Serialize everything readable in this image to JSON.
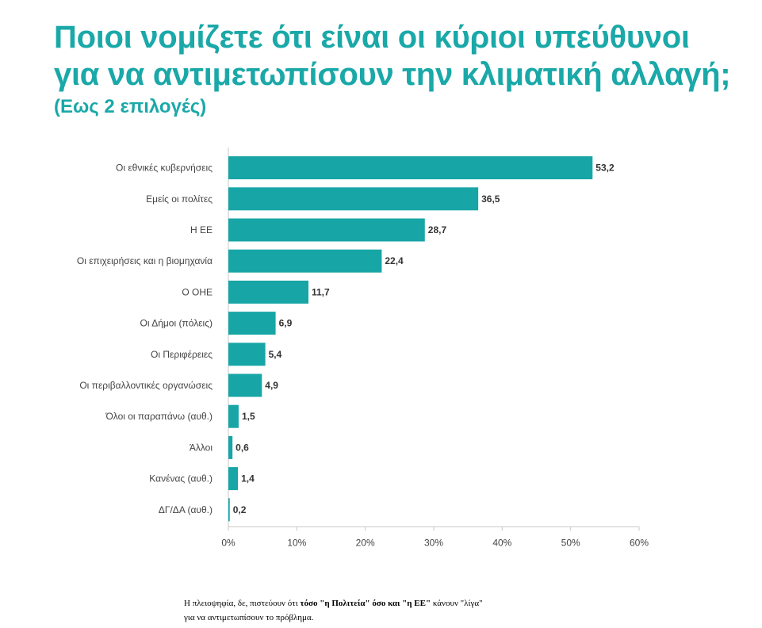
{
  "title_line1": "Ποιοι νομίζετε ότι είναι οι κύριοι υπεύθυνοι",
  "title_line2": "για να αντιμετωπίσουν την κλιματική αλλαγή;",
  "subtitle": "(Εως 2 επιλογές)",
  "colors": {
    "accent": "#1aa8a8",
    "bar": "#17a5a6",
    "axis": "#c8c8c8",
    "text": "#444444"
  },
  "chart_data": {
    "type": "bar",
    "orientation": "horizontal",
    "categories": [
      "Οι εθνικές κυβερνήσεις",
      "Εμείς οι πολίτες",
      "Η ΕΕ",
      "Οι επιχειρήσεις και η βιομηχανία",
      "Ο ΟΗΕ",
      "Οι Δήμοι (πόλεις)",
      "Οι Περιφέρειες",
      "Οι περιβαλλοντικές οργανώσεις",
      "Όλοι οι παραπάνω (αυθ.)",
      "Άλλοι",
      "Κανένας (αυθ.)",
      "ΔΓ/ΔΑ (αυθ.)"
    ],
    "values": [
      53.2,
      36.5,
      28.7,
      22.4,
      11.7,
      6.9,
      5.4,
      4.9,
      1.5,
      0.6,
      1.4,
      0.2
    ],
    "value_labels": [
      "53,2",
      "36,5",
      "28,7",
      "22,4",
      "11,7",
      "6,9",
      "5,4",
      "4,9",
      "1,5",
      "0,6",
      "1,4",
      "0,2"
    ],
    "xlim": [
      0,
      60
    ],
    "xticks": [
      0,
      10,
      20,
      30,
      40,
      50,
      60
    ],
    "xtick_labels": [
      "0%",
      "10%",
      "20%",
      "30%",
      "40%",
      "50%",
      "60%"
    ],
    "grid": false,
    "legend": "none"
  },
  "caption": {
    "part1": "Η πλειοψηφία, δε, πιστεύουν ότι ",
    "bold1": "τόσο \"η Πολιτεία\" όσο και \"η ΕΕ\"",
    "part2": " κάνουν \"λίγα\"",
    "line2": "για να αντιμετωπίσουν το πρόβλημα."
  }
}
